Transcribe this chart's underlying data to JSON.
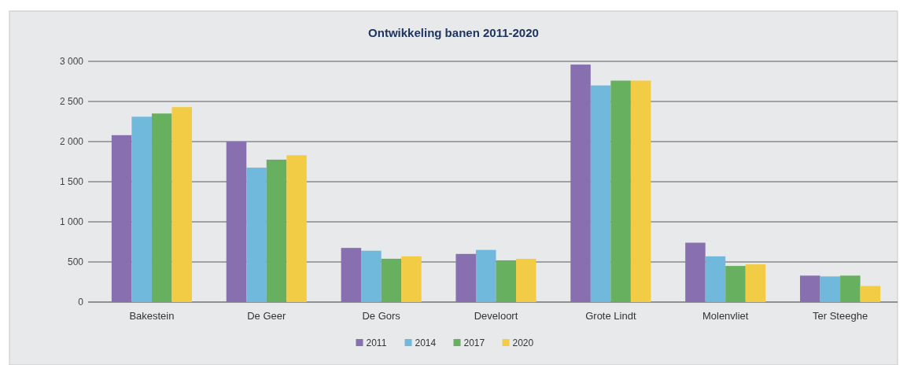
{
  "chart_data": {
    "type": "bar",
    "title": "Ontwikkeling banen 2011-2020",
    "categories": [
      "Bakestein",
      "De Geer",
      "De Gors",
      "Develoort",
      "Grote Lindt",
      "Molenvliet",
      "Ter Steeghe"
    ],
    "series": [
      {
        "name": "2011",
        "color": "#8870b0",
        "values": [
          2080,
          2000,
          675,
          600,
          2960,
          740,
          330
        ]
      },
      {
        "name": "2014",
        "color": "#70b8dc",
        "values": [
          2310,
          1675,
          640,
          650,
          2700,
          570,
          320
        ]
      },
      {
        "name": "2017",
        "color": "#66b060",
        "values": [
          2350,
          1775,
          540,
          520,
          2760,
          450,
          330
        ]
      },
      {
        "name": "2020",
        "color": "#f2cc44",
        "values": [
          2430,
          1830,
          570,
          540,
          2760,
          470,
          200
        ]
      }
    ],
    "ylim": [
      0,
      3000
    ],
    "yticks": [
      {
        "value": 0,
        "label": "0"
      },
      {
        "value": 500,
        "label": "500"
      },
      {
        "value": 1000,
        "label": "1 000"
      },
      {
        "value": 1500,
        "label": "1 500"
      },
      {
        "value": 2000,
        "label": "2 000"
      },
      {
        "value": 2500,
        "label": "2 500"
      },
      {
        "value": 3000,
        "label": "3 000"
      }
    ],
    "grid": "y",
    "legend": "bottom"
  }
}
